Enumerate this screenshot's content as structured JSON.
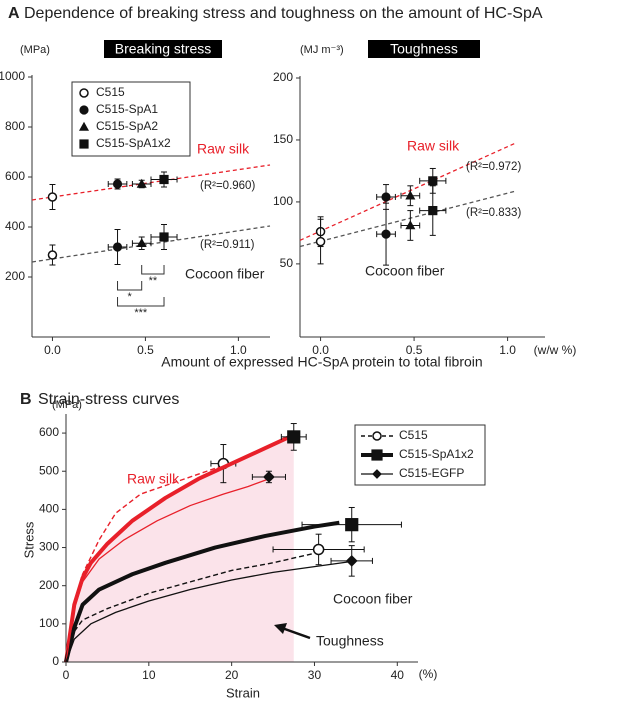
{
  "panels": [
    {
      "letter": "A",
      "title": "Dependence of breaking stress and toughness on the amount of HC-SpA"
    },
    {
      "letter": "B",
      "title": "Strain-stress curves"
    }
  ],
  "chart_data": [
    {
      "type": "scatter",
      "title": "Breaking stress",
      "y_unit": "(MPa)",
      "xlabel": "Amount of expressed HC-SpA protein to total fibroin",
      "xlim": [
        -0.11,
        1.17
      ],
      "ylim": [
        -40,
        1000
      ],
      "xticks": [
        {
          "value": 0,
          "label": "0.0"
        },
        {
          "value": 0.5,
          "label": "0.5"
        },
        {
          "value": 1,
          "label": "1.0"
        }
      ],
      "yticks": [
        200,
        400,
        600,
        800,
        1000
      ],
      "series": [
        {
          "name": "C515",
          "marker": "open-circle",
          "x": [
            0,
            0
          ],
          "values": [
            520,
            288
          ],
          "yerr": [
            50,
            40
          ],
          "xerr": [
            0,
            0
          ]
        },
        {
          "name": "C515-SpA1",
          "marker": "circle",
          "x": [
            0.35,
            0.35
          ],
          "values": [
            572,
            320
          ],
          "yerr": [
            20,
            70
          ],
          "xerr": [
            0.05,
            0.05
          ]
        },
        {
          "name": "C515-SpA2",
          "marker": "triangle",
          "x": [
            0.48,
            0.48
          ],
          "values": [
            572,
            335
          ],
          "yerr": [
            15,
            25
          ],
          "xerr": [
            0.05,
            0.05
          ]
        },
        {
          "name": "C515-SpA1x2",
          "marker": "square",
          "x": [
            0.6,
            0.6
          ],
          "values": [
            590,
            360
          ],
          "yerr": [
            30,
            50
          ],
          "xerr": [
            0.07,
            0.07
          ]
        }
      ],
      "fits": [
        {
          "label": "Raw silk",
          "r2": "(R²=0.960)",
          "color": "#e8202a",
          "x": [
            -0.11,
            1.17
          ],
          "values": [
            508,
            648
          ]
        },
        {
          "label": "Cocoon fiber",
          "r2": "(R²=0.911)",
          "color": "#555555",
          "x": [
            -0.11,
            1.17
          ],
          "values": [
            260,
            404
          ]
        }
      ],
      "significance": [
        {
          "label": "**",
          "x": [
            0.48,
            0.6
          ]
        },
        {
          "label": "*",
          "x": [
            0.35,
            0.48
          ]
        },
        {
          "label": "***",
          "x": [
            0.35,
            0.6
          ]
        }
      ]
    },
    {
      "type": "scatter",
      "title": "Toughness",
      "y_unit": "(MJ m⁻³)",
      "x_unit": "(w/w %)",
      "xlim": [
        -0.11,
        1.2
      ],
      "ylim": [
        -9,
        200
      ],
      "xticks": [
        {
          "value": 0,
          "label": "0.0"
        },
        {
          "value": 0.5,
          "label": "0.5"
        },
        {
          "value": 1,
          "label": "1.0"
        }
      ],
      "yticks": [
        50,
        100,
        150,
        200
      ],
      "series": [
        {
          "marker": "open-circle",
          "x": [
            0,
            0
          ],
          "values": [
            76,
            68
          ],
          "yerr": [
            12,
            18
          ],
          "xerr": [
            0,
            0
          ]
        },
        {
          "marker": "circle",
          "x": [
            0.35,
            0.35
          ],
          "values": [
            104,
            74
          ],
          "yerr": [
            10,
            25
          ],
          "xerr": [
            0.05,
            0.05
          ]
        },
        {
          "marker": "triangle",
          "x": [
            0.48,
            0.48
          ],
          "values": [
            105,
            81
          ],
          "yerr": [
            8,
            12
          ],
          "xerr": [
            0.05,
            0.05
          ]
        },
        {
          "marker": "square",
          "x": [
            0.6,
            0.6
          ],
          "values": [
            117,
            93
          ],
          "yerr": [
            10,
            20
          ],
          "xerr": [
            0.07,
            0.07
          ]
        }
      ],
      "fits": [
        {
          "label": "Raw silk",
          "r2": "(R²=0.972)",
          "color": "#e8202a",
          "x": [
            -0.11,
            1.05
          ],
          "values": [
            69,
            148
          ]
        },
        {
          "label": "Cocoon fiber",
          "r2": "(R²=0.833)",
          "color": "#555555",
          "x": [
            -0.11,
            1.05
          ],
          "values": [
            64,
            109
          ]
        }
      ]
    },
    {
      "type": "line",
      "y_unit": "(MPa)",
      "ylabel": "Stress",
      "xlabel": "Strain",
      "x_unit": "(%)",
      "labels": {
        "raw": "Raw silk",
        "cocoon": "Cocoon fiber",
        "area": "Toughness"
      },
      "xlim": [
        0,
        42.5
      ],
      "ylim": [
        0,
        650
      ],
      "xticks": [
        0,
        10,
        20,
        30,
        40
      ],
      "yticks": [
        0,
        100,
        200,
        300,
        400,
        500,
        600
      ],
      "series": [
        {
          "name": "C515",
          "line": "dashed",
          "marker": "open-circle",
          "curves": [
            {
              "color": "#e8202a",
              "x": [
                0,
                1,
                2,
                4,
                6,
                9,
                13,
                17,
                19
              ],
              "y": [
                0,
                150,
                230,
                320,
                390,
                440,
                470,
                500,
                515
              ],
              "end": {
                "x": 19,
                "y": 520,
                "xerr": 1.5,
                "yerr": 50
              }
            },
            {
              "color": "#111111",
              "x": [
                0,
                1,
                2,
                5,
                10,
                15,
                20,
                25,
                30
              ],
              "y": [
                0,
                80,
                110,
                140,
                180,
                210,
                240,
                260,
                285
              ],
              "end": {
                "x": 30.5,
                "y": 295,
                "xerr": 5.5,
                "yerr": 40
              }
            }
          ]
        },
        {
          "name": "C515-SpA1x2",
          "line": "thick",
          "marker": "square",
          "curves": [
            {
              "color": "#e8202a",
              "fill": "#fbe3ea",
              "x": [
                0,
                1,
                2,
                3,
                5,
                8,
                12,
                16,
                20,
                24,
                27.5
              ],
              "y": [
                0,
                150,
                220,
                260,
                310,
                370,
                430,
                480,
                520,
                560,
                595
              ],
              "end": {
                "x": 27.5,
                "y": 590,
                "xerr": 1.5,
                "yerr": 35
              }
            },
            {
              "color": "#111111",
              "x": [
                0,
                1,
                2,
                4,
                8,
                12,
                18,
                24,
                30,
                33
              ],
              "y": [
                0,
                90,
                150,
                190,
                230,
                260,
                300,
                330,
                355,
                365
              ],
              "end": {
                "x": 34.5,
                "y": 360,
                "xerr": 6,
                "yerr": 45
              }
            }
          ]
        },
        {
          "name": "C515-EGFP",
          "line": "thin",
          "marker": "diamond",
          "curves": [
            {
              "color": "#e8202a",
              "x": [
                0,
                1,
                2,
                4,
                7,
                11,
                15,
                19,
                22,
                24.5
              ],
              "y": [
                0,
                140,
                210,
                270,
                320,
                370,
                410,
                440,
                460,
                480
              ],
              "end": {
                "x": 24.5,
                "y": 485,
                "xerr": 2,
                "yerr": 15
              }
            },
            {
              "color": "#111111",
              "x": [
                0,
                1,
                3,
                6,
                10,
                15,
                20,
                25,
                30,
                35
              ],
              "y": [
                0,
                60,
                100,
                130,
                160,
                190,
                215,
                235,
                250,
                265
              ],
              "end": {
                "x": 34.5,
                "y": 265,
                "xerr": 2.5,
                "yerr": 40
              }
            }
          ]
        }
      ]
    }
  ]
}
